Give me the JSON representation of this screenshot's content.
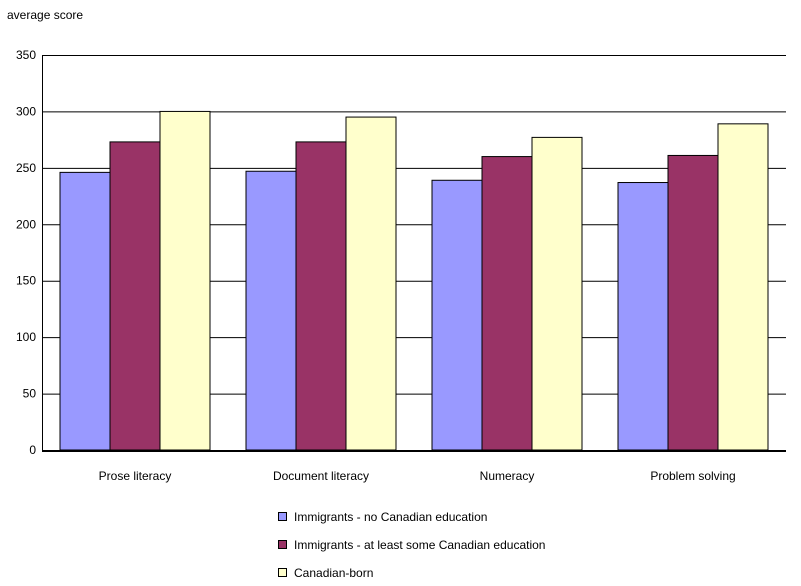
{
  "chart_data": {
    "type": "bar",
    "title": "",
    "ylabel": "average score",
    "xlabel": "",
    "ylim": [
      0,
      350
    ],
    "yticks": [
      0,
      50,
      100,
      150,
      200,
      250,
      300,
      350
    ],
    "grid": true,
    "legend_position": "bottom",
    "categories": [
      "Prose literacy",
      "Document literacy",
      "Numeracy",
      "Problem solving"
    ],
    "series": [
      {
        "name": "Immigrants - no Canadian education",
        "color": "#9999ff",
        "values": [
          246,
          247,
          239,
          237
        ]
      },
      {
        "name": "Immigrants - at least some Canadian education",
        "color": "#993366",
        "values": [
          273,
          273,
          260,
          261
        ]
      },
      {
        "name": "Canadian-born",
        "color": "#ffffcc",
        "values": [
          300,
          295,
          277,
          289
        ]
      }
    ]
  }
}
